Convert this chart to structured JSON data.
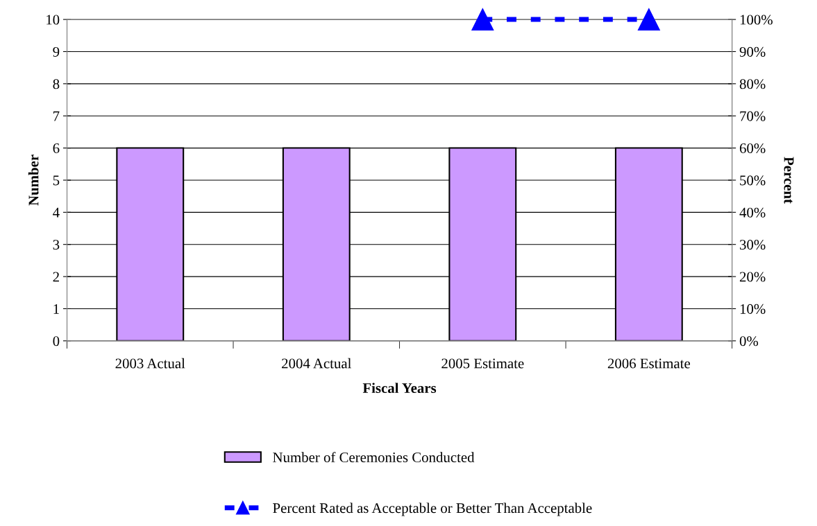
{
  "chart_data": {
    "type": "bar",
    "xlabel": "Fiscal Years",
    "ylabel": "Number",
    "y2label": "Percent",
    "categories": [
      "2003 Actual",
      "2004 Actual",
      "2005 Estimate",
      "2006 Estimate"
    ],
    "series": [
      {
        "name": "Number of Ceremonies Conducted",
        "color": "#cc99ff",
        "values": [
          6,
          6,
          6,
          6
        ]
      },
      {
        "name": "Percent Rated as Acceptable or Better Than Acceptable",
        "type": "line",
        "axis": "y2",
        "color": "#0000ff",
        "marker": "triangle",
        "line_style": "dashed",
        "values": [
          null,
          null,
          100,
          100
        ]
      }
    ],
    "ylim": [
      0,
      10
    ],
    "yticks": [
      0,
      1,
      2,
      3,
      4,
      5,
      6,
      7,
      8,
      9,
      10
    ],
    "y2lim": [
      0,
      100
    ],
    "y2ticks": [
      {
        "value": 0,
        "label": "0%"
      },
      {
        "value": 10,
        "label": "10%"
      },
      {
        "value": 20,
        "label": "20%"
      },
      {
        "value": 30,
        "label": "30%"
      },
      {
        "value": 40,
        "label": "40%"
      },
      {
        "value": 50,
        "label": "50%"
      },
      {
        "value": 60,
        "label": "60%"
      },
      {
        "value": 70,
        "label": "70%"
      },
      {
        "value": 80,
        "label": "80%"
      },
      {
        "value": 90,
        "label": "90%"
      },
      {
        "value": 100,
        "label": "100%"
      }
    ],
    "grid": "y",
    "legend": "bottom"
  }
}
